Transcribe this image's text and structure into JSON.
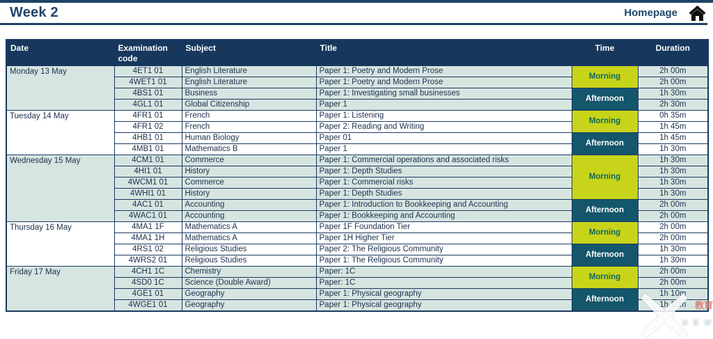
{
  "page": {
    "title": "Week 2",
    "nav": {
      "homepage_label": "Homepage"
    }
  },
  "colors": {
    "navy_header": "#17375d",
    "border_navy": "#1b3a5f",
    "title_navy": "#1f4569",
    "row_green": "#d7e5e1",
    "morning_bg": "#c8d419",
    "morning_text": "#0f695f",
    "afternoon_bg": "#14566b",
    "afternoon_text": "#ffffff"
  },
  "table": {
    "headers": {
      "date": "Date",
      "code": "Examination code",
      "subject": "Subject",
      "title": "Title",
      "time": "Time",
      "duration": "Duration"
    },
    "days": [
      {
        "date": "Monday 13 May",
        "sessions": [
          {
            "time": "Morning",
            "exams": [
              {
                "code": "4ET1 01",
                "subject": "English Literature",
                "title": "Paper 1: Poetry and Modern Prose",
                "duration": "2h 00m"
              },
              {
                "code": "4WET1 01",
                "subject": "English Literature",
                "title": "Paper 1: Poetry and Modern Prose",
                "duration": "2h 00m"
              }
            ]
          },
          {
            "time": "Afternoon",
            "exams": [
              {
                "code": "4BS1 01",
                "subject": "Business",
                "title": "Paper 1: Investigating small businesses",
                "duration": "1h 30m"
              },
              {
                "code": "4GL1 01",
                "subject": "Global Citizenship",
                "title": "Paper 1",
                "duration": "2h 30m"
              }
            ]
          }
        ]
      },
      {
        "date": "Tuesday 14 May",
        "sessions": [
          {
            "time": "Morning",
            "exams": [
              {
                "code": "4FR1 01",
                "subject": "French",
                "title": "Paper 1: Listening",
                "duration": "0h 35m"
              },
              {
                "code": "4FR1 02",
                "subject": "French",
                "title": "Paper 2: Reading and Writing",
                "duration": "1h 45m"
              }
            ]
          },
          {
            "time": "Afternoon",
            "exams": [
              {
                "code": "4HB1 01",
                "subject": "Human Biology",
                "title": "Paper 01",
                "duration": "1h 45m"
              },
              {
                "code": "4MB1 01",
                "subject": "Mathematics B",
                "title": "Paper 1",
                "duration": "1h 30m"
              }
            ]
          }
        ]
      },
      {
        "date": "Wednesday 15 May",
        "sessions": [
          {
            "time": "Morning",
            "exams": [
              {
                "code": "4CM1 01",
                "subject": "Commerce",
                "title": "Paper 1: Commercial operations and associated risks",
                "duration": "1h 30m"
              },
              {
                "code": "4HI1 01",
                "subject": "History",
                "title": "Paper 1: Depth Studies",
                "duration": "1h 30m"
              },
              {
                "code": "4WCM1 01",
                "subject": "Commerce",
                "title": "Paper 1: Commercial risks",
                "duration": "1h 30m"
              },
              {
                "code": "4WHI1 01",
                "subject": "History",
                "title": "Paper 1: Depth Studies",
                "duration": "1h 30m"
              }
            ]
          },
          {
            "time": "Afternoon",
            "exams": [
              {
                "code": "4AC1 01",
                "subject": "Accounting",
                "title": "Paper 1: Introduction to Bookkeeping and Accounting",
                "duration": "2h 00m"
              },
              {
                "code": "4WAC1 01",
                "subject": "Accounting",
                "title": "Paper 1: Bookkeeping and Accounting",
                "duration": "2h 00m"
              }
            ]
          }
        ]
      },
      {
        "date": "Thursday 16 May",
        "sessions": [
          {
            "time": "Morning",
            "exams": [
              {
                "code": "4MA1 1F",
                "subject": "Mathematics A",
                "title": "Paper 1F Foundation Tier",
                "duration": "2h 00m"
              },
              {
                "code": "4MA1 1H",
                "subject": "Mathematics A",
                "title": "Paper 1H Higher Tier",
                "duration": "2h 00m"
              }
            ]
          },
          {
            "time": "Afternoon",
            "exams": [
              {
                "code": "4RS1 02",
                "subject": "Religious Studies",
                "title": "Paper 2: The Religious Community",
                "duration": "1h 30m"
              },
              {
                "code": "4WRS2 01",
                "subject": "Religious Studies",
                "title": "Paper 1: The Religious Community",
                "duration": "1h 30m"
              }
            ]
          }
        ]
      },
      {
        "date": "Friday 17 May",
        "sessions": [
          {
            "time": "Morning",
            "exams": [
              {
                "code": "4CH1 1C",
                "subject": "Chemistry",
                "title": "Paper: 1C",
                "duration": "2h 00m"
              },
              {
                "code": "4SD0 1C",
                "subject": "Science (Double Award)",
                "title": "Paper: 1C",
                "duration": "2h 00m"
              }
            ]
          },
          {
            "time": "Afternoon",
            "exams": [
              {
                "code": "4GE1 01",
                "subject": "Geography",
                "title": "Paper 1: Physical geography",
                "duration": "1h 10m"
              },
              {
                "code": "4WGE1 01",
                "subject": "Geography",
                "title": "Paper 1: Physical geography",
                "duration": "1h 10m"
              }
            ]
          }
        ]
      }
    ]
  },
  "watermark": {
    "text_cn": "教育",
    "text_en": "N E W"
  }
}
